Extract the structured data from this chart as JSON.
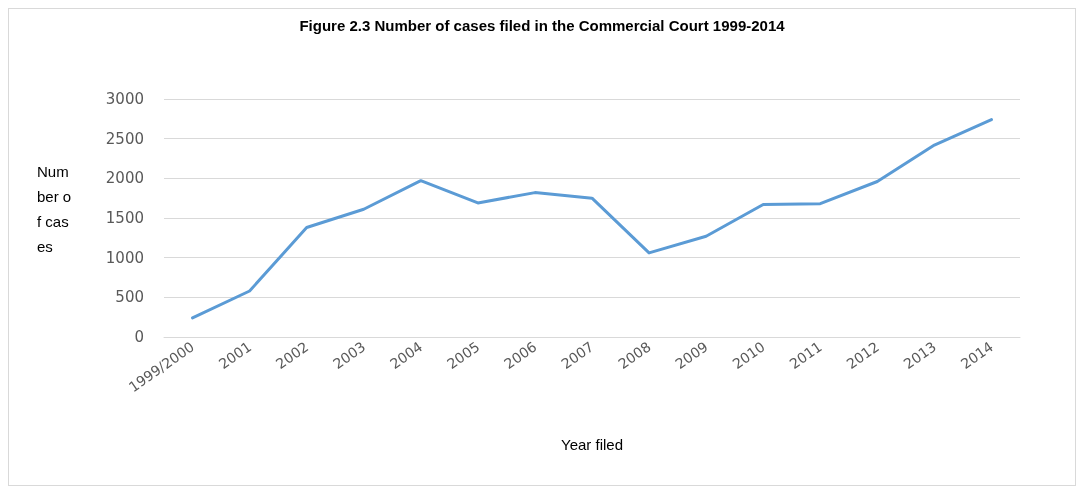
{
  "chart_data": {
    "type": "line",
    "title": "Figure 2.3 Number of cases filed in the Commercial Court 1999-2014",
    "xlabel": "Year filed",
    "ylabel": "Number of cases",
    "categories": [
      "1999/2000",
      "2001",
      "2002",
      "2003",
      "2004",
      "2005",
      "2006",
      "2007",
      "2008",
      "2009",
      "2010",
      "2011",
      "2012",
      "2013",
      "2014"
    ],
    "series": [
      {
        "color": "#5b9bd5",
        "values": [
          240,
          580,
          1380,
          1610,
          1970,
          1690,
          1820,
          1750,
          1060,
          1270,
          1670,
          1680,
          1960,
          2420,
          2740
        ]
      }
    ],
    "ylim": [
      0,
      3000
    ],
    "yticks": [
      0,
      500,
      1000,
      1500,
      2000,
      2500,
      3000
    ],
    "grid": "y",
    "marker": "none",
    "line_style": "solid"
  }
}
